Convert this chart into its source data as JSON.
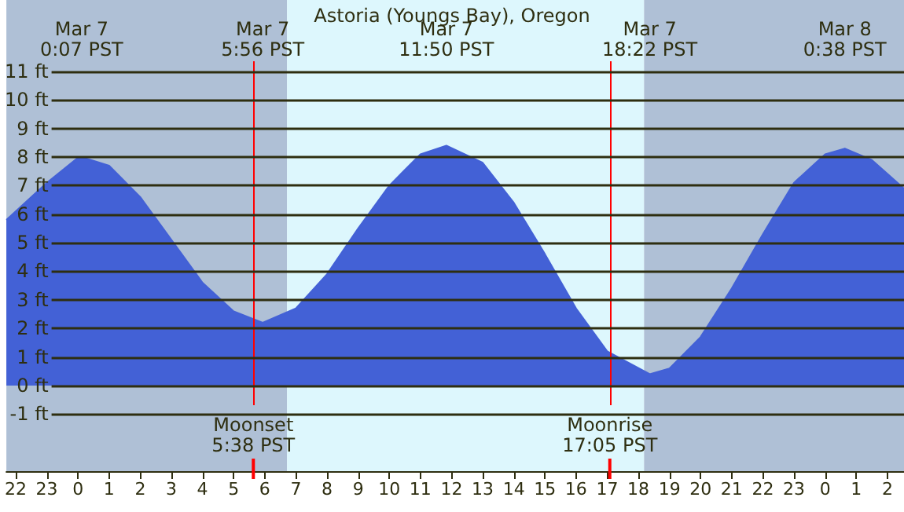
{
  "chart_data": {
    "type": "area",
    "title": "Astoria (Youngs Bay), Oregon",
    "x": [
      "--03-06T21:42",
      "--03-06T23:00",
      "--03-07T00:00",
      "--03-07T00:07",
      "--03-07T01:00",
      "--03-07T02:00",
      "--03-07T03:00",
      "--03-07T04:00",
      "--03-07T05:00",
      "--03-07T05:56",
      "--03-07T07:00",
      "--03-07T08:00",
      "--03-07T09:00",
      "--03-07T10:00",
      "--03-07T11:00",
      "--03-07T11:50",
      "--03-07T13:00",
      "--03-07T14:00",
      "--03-07T15:00",
      "--03-07T16:00",
      "--03-07T17:00",
      "--03-07T18:22",
      "--03-07T19:00",
      "--03-07T20:00",
      "--03-07T21:00",
      "--03-07T22:00",
      "--03-07T23:00",
      "--03-08T00:00",
      "--03-08T00:38",
      "--03-08T01:30",
      "--03-08T02:32"
    ],
    "series": [
      {
        "color": "#4361d6",
        "values": [
          5.8,
          7.1,
          7.98,
          8.0,
          7.7,
          6.6,
          5.1,
          3.6,
          2.6,
          2.2,
          2.7,
          3.9,
          5.5,
          7.0,
          8.1,
          8.4,
          7.8,
          6.4,
          4.6,
          2.7,
          1.2,
          0.4,
          0.6,
          1.7,
          3.4,
          5.3,
          7.1,
          8.1,
          8.3,
          7.9,
          6.9
        ]
      }
    ],
    "xlim": [
      "--03-06T21:42",
      "--03-08T02:32"
    ],
    "xticks": [
      {
        "value": "--03-06T22:00",
        "label": "22"
      },
      {
        "value": "--03-06T23:00",
        "label": "23"
      },
      {
        "value": "--03-07T00:00",
        "label": "0"
      },
      {
        "value": "--03-07T01:00",
        "label": "1"
      },
      {
        "value": "--03-07T02:00",
        "label": "2"
      },
      {
        "value": "--03-07T03:00",
        "label": "3"
      },
      {
        "value": "--03-07T04:00",
        "label": "4"
      },
      {
        "value": "--03-07T05:00",
        "label": "5"
      },
      {
        "value": "--03-07T06:00",
        "label": "6"
      },
      {
        "value": "--03-07T07:00",
        "label": "7"
      },
      {
        "value": "--03-07T08:00",
        "label": "8"
      },
      {
        "value": "--03-07T09:00",
        "label": "9"
      },
      {
        "value": "--03-07T10:00",
        "label": "10"
      },
      {
        "value": "--03-07T11:00",
        "label": "11"
      },
      {
        "value": "--03-07T12:00",
        "label": "12"
      },
      {
        "value": "--03-07T13:00",
        "label": "13"
      },
      {
        "value": "--03-07T14:00",
        "label": "14"
      },
      {
        "value": "--03-07T15:00",
        "label": "15"
      },
      {
        "value": "--03-07T16:00",
        "label": "16"
      },
      {
        "value": "--03-07T17:00",
        "label": "17"
      },
      {
        "value": "--03-07T18:00",
        "label": "18"
      },
      {
        "value": "--03-07T19:00",
        "label": "19"
      },
      {
        "value": "--03-07T20:00",
        "label": "20"
      },
      {
        "value": "--03-07T21:00",
        "label": "21"
      },
      {
        "value": "--03-07T22:00",
        "label": "22"
      },
      {
        "value": "--03-07T23:00",
        "label": "23"
      },
      {
        "value": "--03-08T00:00",
        "label": "0"
      },
      {
        "value": "--03-08T01:00",
        "label": "1"
      },
      {
        "value": "--03-08T02:00",
        "label": "2"
      }
    ],
    "ylim": [
      -3,
      13.5
    ],
    "yticks": [
      {
        "value": -1,
        "label": "-1 ft"
      },
      {
        "value": 0,
        "label": "0 ft"
      },
      {
        "value": 1,
        "label": "1 ft"
      },
      {
        "value": 2,
        "label": "2 ft"
      },
      {
        "value": 3,
        "label": "3 ft"
      },
      {
        "value": 4,
        "label": "4 ft"
      },
      {
        "value": 5,
        "label": "5 ft"
      },
      {
        "value": 6,
        "label": "6 ft"
      },
      {
        "value": 7,
        "label": "7 ft"
      },
      {
        "value": 8,
        "label": "8 ft"
      },
      {
        "value": 9,
        "label": "9 ft"
      },
      {
        "value": 10,
        "label": "10 ft"
      },
      {
        "value": 11,
        "label": "11 ft"
      }
    ],
    "grid": "y",
    "bands": [
      {
        "axis": "x",
        "from": "--03-06T21:42",
        "to": "--03-07T06:43",
        "color": "#afc0d6"
      },
      {
        "axis": "x",
        "from": "--03-07T06:43",
        "to": "--03-07T18:11",
        "color": "#ddf7fd"
      },
      {
        "axis": "x",
        "from": "--03-07T18:11",
        "to": "--03-08T02:32",
        "color": "#afc0d6"
      }
    ],
    "ref_lines": [
      {
        "axis": "x",
        "value": "--03-07T05:38",
        "label": "Moonset\n5:38 PST",
        "color": "#ff0000"
      },
      {
        "axis": "x",
        "value": "--03-07T17:05",
        "label": "Moonrise\n17:05 PST",
        "color": "#ff0000"
      }
    ],
    "annotations": [
      "Mar 7\n0:07 PST",
      "Mar 7\n5:56 PST",
      "Mar 7\n11:50 PST",
      "Mar 7\n18:22 PST",
      "Mar 8\n0:38 PST"
    ]
  }
}
